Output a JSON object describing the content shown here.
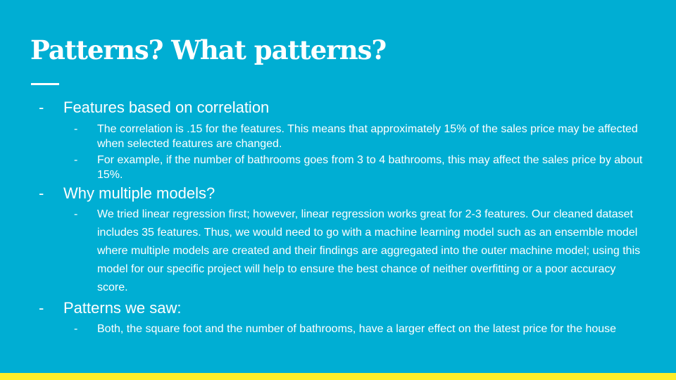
{
  "slide": {
    "title": "Patterns? What patterns?",
    "bullet_marker": "-",
    "sections": [
      {
        "heading": "Features based on correlation",
        "items": [
          "The correlation is .15 for the features. This means that approximately 15% of the sales price may be affected when selected features are changed.",
          "For example, if the number of bathrooms goes from 3 to 4 bathrooms, this may affect the sales price by about 15%."
        ]
      },
      {
        "heading": "Why multiple models?",
        "items": [
          "We tried linear regression first; however, linear regression works great for 2-3 features. Our cleaned dataset includes 35 features. Thus, we would need to go with a machine learning model such as an ensemble model where multiple models are created and their findings are aggregated into the outer machine model; using this model for our specific project will help to ensure the best chance of neither overfitting or a poor accuracy score."
        ]
      },
      {
        "heading": "Patterns we saw:",
        "items": [
          "Both, the square foot and the number of bathrooms, have a larger effect on the latest price for the house"
        ]
      }
    ]
  },
  "colors": {
    "background": "#00aed3",
    "text": "#ffffff",
    "bottom_bar": "#ffee29"
  }
}
